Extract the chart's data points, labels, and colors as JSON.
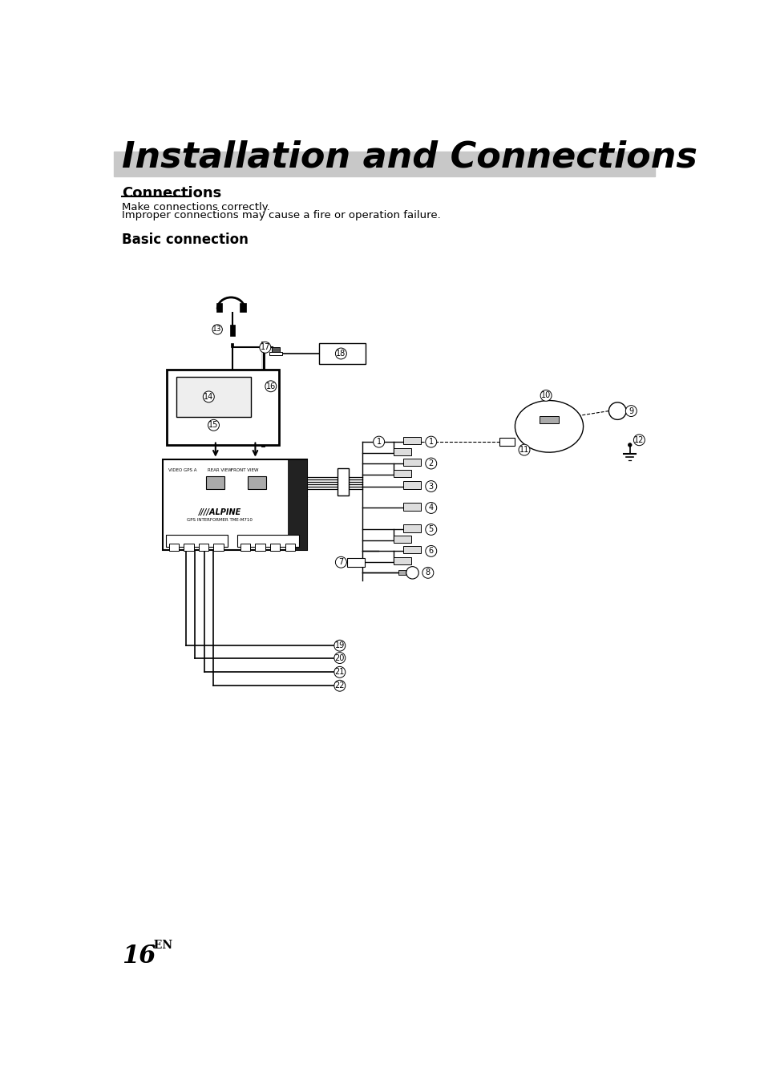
{
  "title": "Installation and Connections",
  "section": "Connections",
  "body_text_1": "Make connections correctly.",
  "body_text_2": "Improper connections may cause a fire or operation failure.",
  "subsection": "Basic connection",
  "page_number": "16",
  "page_suffix": "-EN",
  "bg_color": "#ffffff",
  "text_color": "#000000",
  "gray_bar_color": "#c8c8c8",
  "title_fontsize": 32,
  "section_fontsize": 13,
  "body_fontsize": 9.5,
  "subsection_fontsize": 12,
  "page_fontsize": 22,
  "page_suffix_fontsize": 10,
  "label_fontsize": 6.5,
  "label_r": 8
}
